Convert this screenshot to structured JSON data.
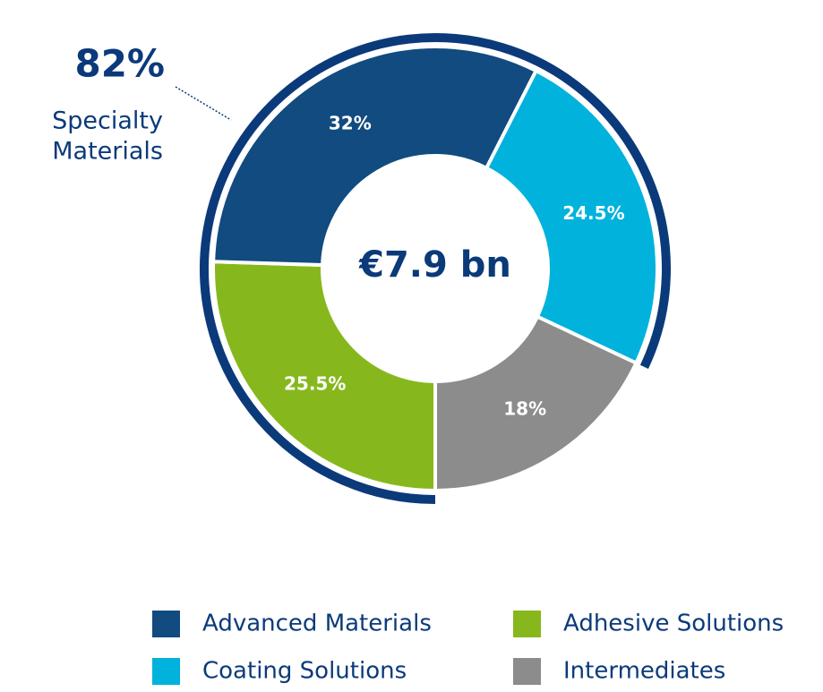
{
  "chart_data": {
    "type": "donut",
    "center_label": "€7.9 bn",
    "categories": [
      "Adhesive Solutions",
      "Advanced Materials",
      "Coating Solutions",
      "Intermediates"
    ],
    "values": [
      25.5,
      32,
      24.5,
      18
    ],
    "value_labels": [
      "25.5%",
      "32%",
      "24.5%",
      "18%"
    ],
    "colors": [
      "#86b81d",
      "#114b7f",
      "#00b2dc",
      "#8c8c8c"
    ],
    "group": {
      "value": 82,
      "value_label": "82%",
      "name_lines": [
        "Specialty",
        "Materials"
      ],
      "color": "#0b3a7a"
    }
  }
}
